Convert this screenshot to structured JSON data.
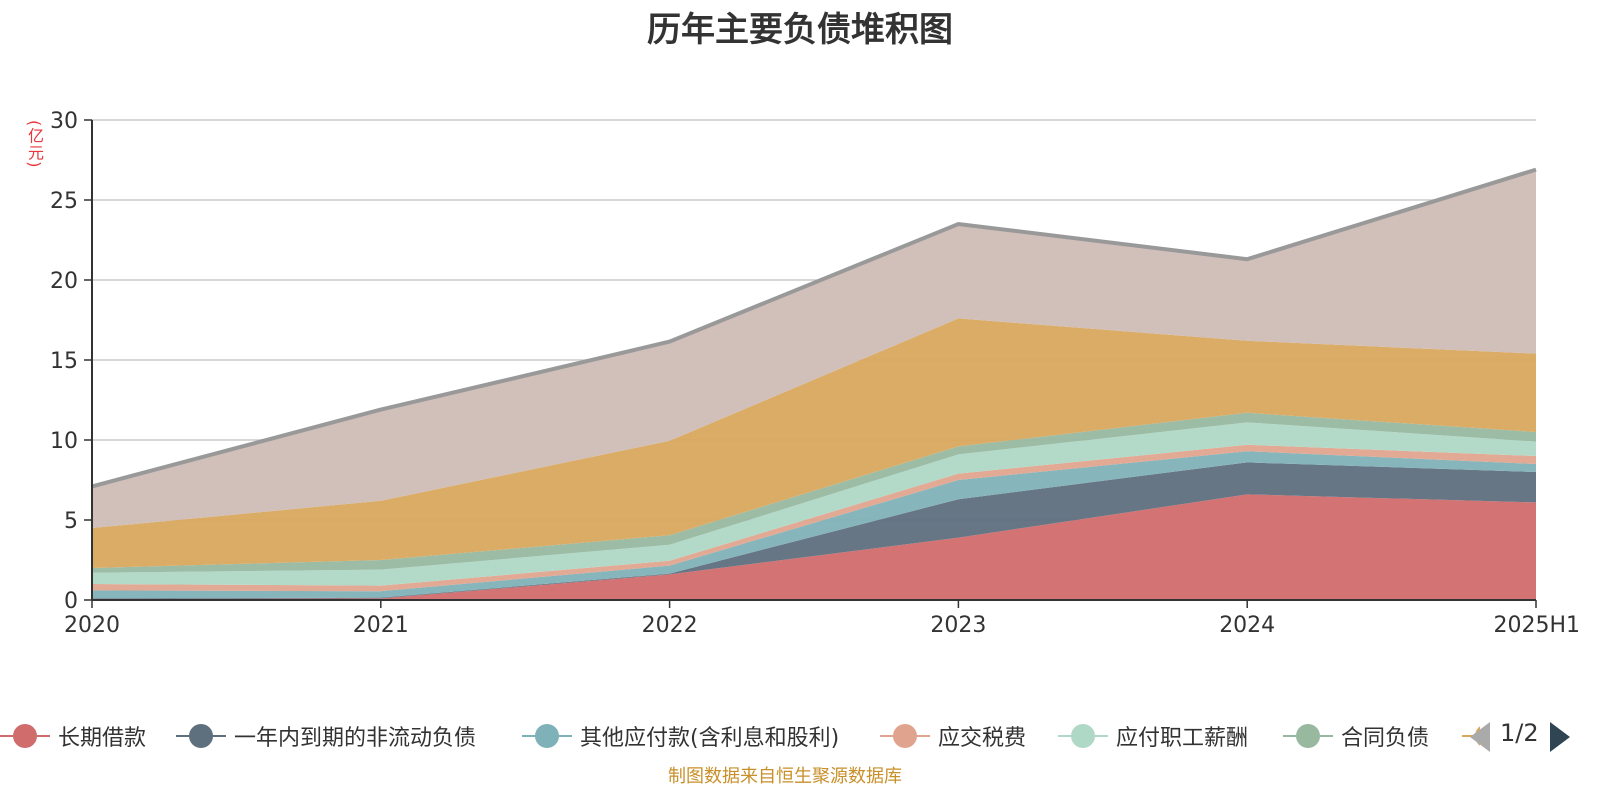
{
  "chart_data": {
    "type": "area",
    "stacked": true,
    "title": "历年主要负债堆积图",
    "unit_label": "(亿元)",
    "categories": [
      "2020",
      "2021",
      "2022",
      "2023",
      "2024",
      "2025H1"
    ],
    "ylim": [
      0,
      30
    ],
    "yticks": [
      0,
      5,
      10,
      15,
      20,
      25,
      30
    ],
    "grid": true,
    "series": [
      {
        "name": "长期借款",
        "color": "#d16c6c",
        "values": [
          0.05,
          0.1,
          1.6,
          3.9,
          6.6,
          6.1
        ]
      },
      {
        "name": "一年内到期的非流动负债",
        "color": "#5e6f7e",
        "values": [
          0.05,
          0.05,
          0.05,
          2.4,
          2.0,
          1.9
        ]
      },
      {
        "name": "其他应付款(含利息和股利)",
        "color": "#7fb2b8",
        "values": [
          0.5,
          0.4,
          0.5,
          1.2,
          0.7,
          0.5
        ]
      },
      {
        "name": "应交税费",
        "color": "#e0a48e",
        "values": [
          0.4,
          0.35,
          0.3,
          0.4,
          0.4,
          0.5
        ]
      },
      {
        "name": "应付职工薪酬",
        "color": "#afd8c6",
        "values": [
          0.7,
          1.0,
          1.0,
          1.2,
          1.4,
          0.9
        ]
      },
      {
        "name": "合同负债",
        "color": "#98b8a0",
        "values": [
          0.3,
          0.6,
          0.6,
          0.5,
          0.6,
          0.6
        ]
      },
      {
        "name": "",
        "color": "#d9a85e",
        "values": [
          2.5,
          3.7,
          5.9,
          8.0,
          4.5,
          4.9
        ]
      },
      {
        "name": "",
        "color": "#cfbcb6",
        "values": [
          2.6,
          5.7,
          6.2,
          5.9,
          5.1,
          11.5
        ]
      }
    ],
    "total_line_color": "#999999",
    "legend_placement": "bottom",
    "legend_visible_count": 7
  },
  "legend": {
    "page": "1/2"
  },
  "footer": {
    "source": "制图数据来自恒生聚源数据库"
  }
}
